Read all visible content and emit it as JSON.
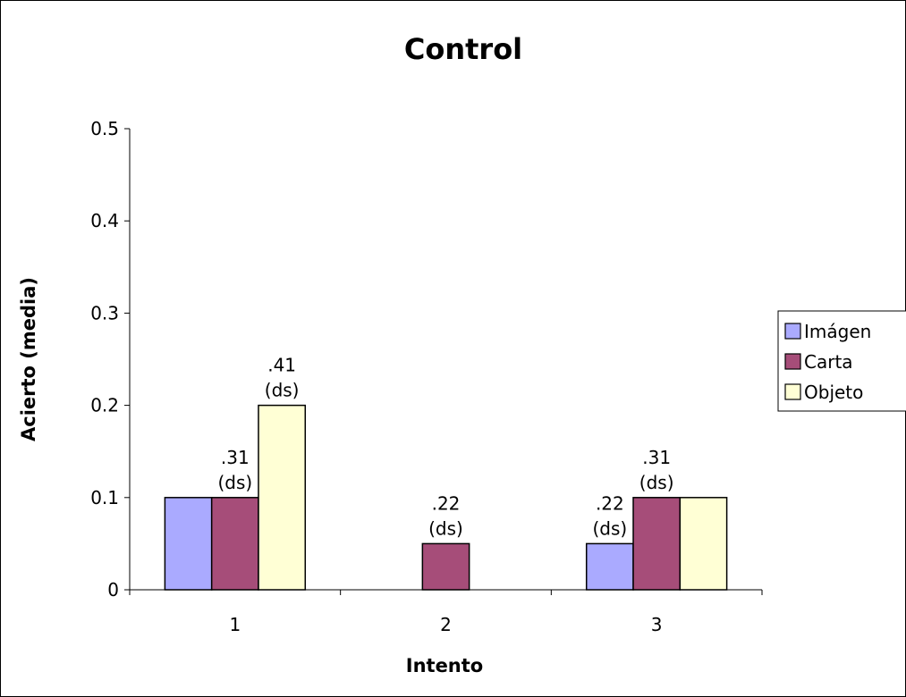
{
  "chart_data": {
    "type": "bar",
    "title": "Control",
    "xlabel": "Intento",
    "ylabel": "Acierto (media)",
    "categories": [
      "1",
      "2",
      "3"
    ],
    "ylim": [
      0,
      0.5
    ],
    "yticks": [
      "0",
      "0.1",
      "0.2",
      "0.3",
      "0.4",
      "0.5"
    ],
    "series": [
      {
        "name": "Imágen",
        "color": "#aaaaff",
        "values": [
          0.1,
          0,
          0.05
        ]
      },
      {
        "name": "Carta",
        "color": "#a64d79",
        "values": [
          0.1,
          0.05,
          0.1
        ]
      },
      {
        "name": "Objeto",
        "color": "#ffffd5",
        "values": [
          0.2,
          0,
          0.1
        ]
      }
    ],
    "data_labels": [
      {
        "category": "1",
        "series": "Carta",
        "lines": [
          ".31",
          "(ds)"
        ]
      },
      {
        "category": "1",
        "series": "Objeto",
        "lines": [
          ".41",
          "(ds)"
        ]
      },
      {
        "category": "2",
        "series": "Carta",
        "lines": [
          ".22",
          "(ds)"
        ]
      },
      {
        "category": "3",
        "series": "Imágen",
        "lines": [
          ".22",
          "(ds)"
        ]
      },
      {
        "category": "3",
        "series": "Carta",
        "lines": [
          ".31",
          "(ds)"
        ]
      }
    ],
    "grid": false,
    "legend_position": "right"
  }
}
